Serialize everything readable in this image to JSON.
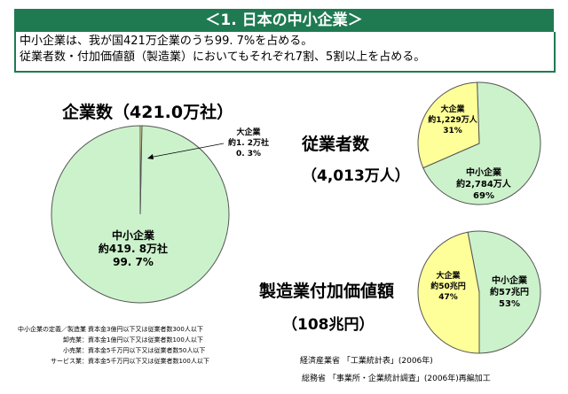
{
  "header": {
    "title": "＜1. 日本の中小企業＞"
  },
  "summary": {
    "line1": "中小企業は、我が国421万企業のうち99. 7%を占める。",
    "line2": "従業者数・付加価値額（製造業）においてもそれぞれ7割、5割以上を占める。"
  },
  "charts": {
    "companies": {
      "title": "企業数（421.0万社）"
    },
    "employees": {
      "title": "従業者数",
      "subtitle": "（4,013万人）"
    },
    "value_added": {
      "title": "製造業付加価値額",
      "subtitle": "（108兆円）"
    }
  },
  "definitions": [
    {
      "label": "中小企業の定義／製造業",
      "text": "：資本金3億円以下又は従業者数300人以下"
    },
    {
      "label": "卸売業",
      "text": "：資本金1億円以下又は従業者数100人以下"
    },
    {
      "label": "小売業",
      "text": "：資本金5千万円以下又は従業者数50人以下"
    },
    {
      "label": "サービス業",
      "text": "：資本金5千万円以下又は従業者数100人以下"
    }
  ],
  "sources": {
    "line1": "経済産業省 「工業統計表」(2006年)",
    "line2": "総務省 「事業所・企業統計調査」(2006年)再編加工"
  },
  "chart_data": [
    {
      "type": "pie",
      "title": "企業数（421.0万社）",
      "slices": [
        {
          "name": "中小企業",
          "value_text": "約419. 8万社",
          "percent_text": "99. 7%",
          "value": 99.7,
          "color": "#ccf2cc"
        },
        {
          "name": "大企業",
          "value_text": "約1. 2万社",
          "percent_text": "0. 3%",
          "value": 0.3,
          "color": "#ffff99"
        }
      ]
    },
    {
      "type": "pie",
      "title": "従業者数（4,013万人）",
      "slices": [
        {
          "name": "中小企業",
          "value_text": "約2,784万人",
          "percent_text": "69%",
          "value": 69,
          "color": "#ccf2cc"
        },
        {
          "name": "大企業",
          "value_text": "約1,229万人",
          "percent_text": "31%",
          "value": 31,
          "color": "#ffff99"
        }
      ]
    },
    {
      "type": "pie",
      "title": "製造業付加価値額（108兆円）",
      "slices": [
        {
          "name": "中小企業",
          "value_text": "約57兆円",
          "percent_text": "53%",
          "value": 53,
          "color": "#ccf2cc"
        },
        {
          "name": "大企業",
          "value_text": "約50兆円",
          "percent_text": "47%",
          "value": 47,
          "color": "#ffff99"
        }
      ]
    }
  ]
}
